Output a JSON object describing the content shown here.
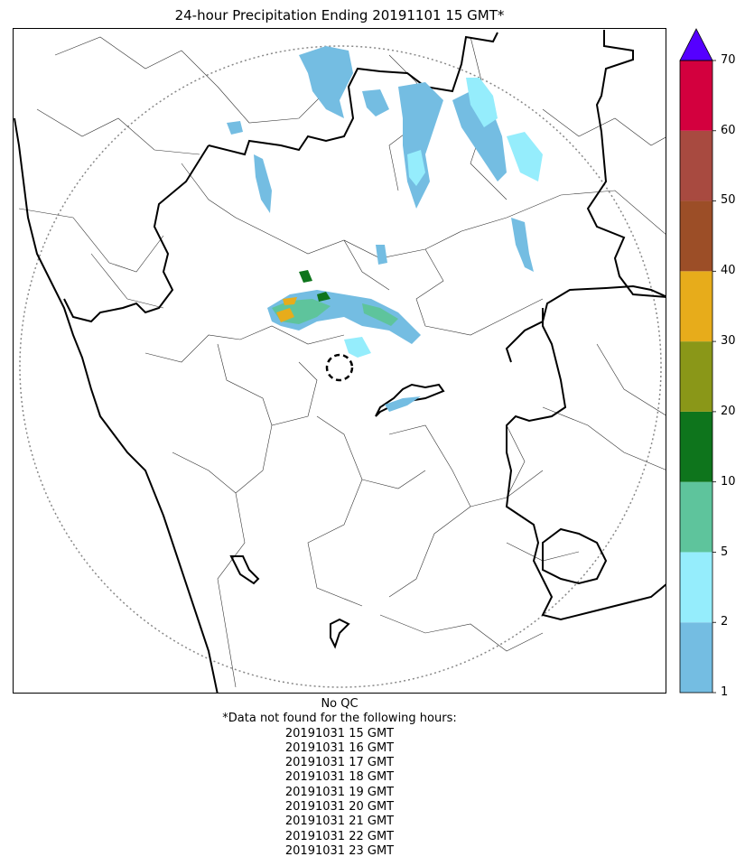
{
  "title": "24-hour Precipitation Ending 20191101 15 GMT*",
  "colorbar": {
    "ticks": [
      "1",
      "2",
      "5",
      "10",
      "20",
      "30",
      "40",
      "50",
      "60",
      "70"
    ],
    "colors": [
      "#74bde2",
      "#95edfc",
      "#5ec49c",
      "#0e751c",
      "#8a9718",
      "#e7ac1b",
      "#9c4e27",
      "#a84a40",
      "#d3003e"
    ],
    "extend_color": "#5500ff"
  },
  "footer": {
    "qc_note": "No QC",
    "missing_note": "*Data not found for the following hours:",
    "missing_hours": [
      "20191031 15 GMT",
      "20191031 16 GMT",
      "20191031 17 GMT",
      "20191031 18 GMT",
      "20191031 19 GMT",
      "20191031 20 GMT",
      "20191031 21 GMT",
      "20191031 22 GMT",
      "20191031 23 GMT"
    ]
  }
}
